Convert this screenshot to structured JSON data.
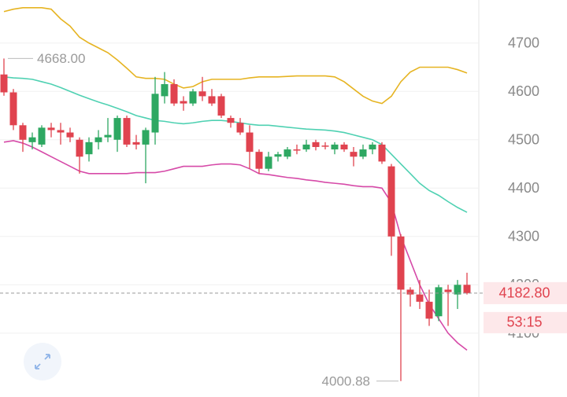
{
  "chart_data": {
    "type": "candlestick",
    "ylim": [
      3968,
      4789
    ],
    "yticks": [
      4100,
      4200,
      4300,
      4400,
      4500,
      4600,
      4700
    ],
    "grid": true,
    "up_color": "#2ea862",
    "down_color": "#e0434f",
    "candles": {
      "open": [
        4635,
        4598,
        4530,
        4495,
        4490,
        4525,
        4520,
        4515,
        4500,
        4470,
        4495,
        4505,
        4500,
        4545,
        4495,
        4490,
        4515,
        4590,
        4615,
        4580,
        4575,
        4600,
        4590,
        4590,
        4545,
        4535,
        4515,
        4475,
        4440,
        4465,
        4465,
        4480,
        4480,
        4495,
        4488,
        4480,
        4490,
        4475,
        4465,
        4480,
        4490,
        4445,
        4300,
        4190,
        4180,
        4165,
        4135,
        4190,
        4180,
        4200
      ],
      "high": [
        4668,
        4605,
        4535,
        4515,
        4530,
        4535,
        4535,
        4525,
        4505,
        4505,
        4520,
        4545,
        4550,
        4550,
        4510,
        4525,
        4630,
        4640,
        4625,
        4590,
        4605,
        4630,
        4605,
        4595,
        4550,
        4545,
        4530,
        4480,
        4475,
        4475,
        4485,
        4490,
        4500,
        4500,
        4495,
        4495,
        4495,
        4485,
        4490,
        4495,
        4495,
        4450,
        4305,
        4195,
        4210,
        4190,
        4200,
        4200,
        4210,
        4225
      ],
      "low": [
        4591,
        4520,
        4475,
        4480,
        4485,
        4505,
        4490,
        4495,
        4430,
        4455,
        4480,
        4495,
        4475,
        4485,
        4480,
        4410,
        4490,
        4575,
        4570,
        4560,
        4570,
        4580,
        4570,
        4545,
        4525,
        4510,
        4440,
        4430,
        4435,
        4455,
        4460,
        4470,
        4475,
        4478,
        4480,
        4470,
        4475,
        4445,
        4460,
        4470,
        4450,
        4260,
        4000.88,
        4155,
        4150,
        4115,
        4125,
        4115,
        4150,
        4180
      ],
      "close": [
        4598,
        4530,
        4500,
        4505,
        4525,
        4520,
        4515,
        4505,
        4465,
        4495,
        4505,
        4510,
        4545,
        4490,
        4490,
        4520,
        4595,
        4615,
        4575,
        4575,
        4600,
        4590,
        4575,
        4550,
        4535,
        4515,
        4475,
        4440,
        4465,
        4470,
        4480,
        4478,
        4490,
        4485,
        4486,
        4490,
        4480,
        4465,
        4480,
        4490,
        4455,
        4300,
        4190,
        4180,
        4165,
        4130,
        4195,
        4185,
        4200,
        4182.8
      ]
    },
    "bands": [
      {
        "color": "#e6b422",
        "values": [
          4765,
          4770,
          4773,
          4773,
          4773,
          4770,
          4750,
          4735,
          4712,
          4700,
          4690,
          4680,
          4665,
          4648,
          4630,
          4627,
          4627,
          4625,
          4615,
          4607,
          4610,
          4620,
          4625,
          4625,
          4625,
          4625,
          4628,
          4630,
          4630,
          4630,
          4631,
          4632,
          4632,
          4632,
          4632,
          4630,
          4620,
          4605,
          4590,
          4580,
          4575,
          4590,
          4620,
          4640,
          4650,
          4650,
          4650,
          4650,
          4645,
          4638
        ]
      },
      {
        "color": "#4fd1b2",
        "values": [
          4630,
          4628,
          4627,
          4625,
          4620,
          4615,
          4608,
          4600,
          4592,
          4585,
          4578,
          4572,
          4565,
          4558,
          4550,
          4545,
          4540,
          4538,
          4535,
          4533,
          4535,
          4538,
          4540,
          4540,
          4538,
          4535,
          4532,
          4530,
          4530,
          4528,
          4526,
          4524,
          4522,
          4521,
          4520,
          4518,
          4515,
          4510,
          4505,
          4500,
          4490,
          4470,
          4450,
          4430,
          4410,
          4395,
          4385,
          4372,
          4360,
          4350
        ]
      },
      {
        "color": "#d64aa8",
        "values": [
          4495,
          4498,
          4493,
          4485,
          4475,
          4465,
          4455,
          4445,
          4435,
          4430,
          4430,
          4430,
          4430,
          4430,
          4432,
          4432,
          4432,
          4435,
          4440,
          4445,
          4445,
          4445,
          4448,
          4450,
          4450,
          4448,
          4440,
          4430,
          4428,
          4425,
          4422,
          4420,
          4417,
          4415,
          4412,
          4410,
          4408,
          4405,
          4403,
          4403,
          4400,
          4370,
          4300,
          4250,
          4200,
          4160,
          4130,
          4100,
          4080,
          4065
        ]
      }
    ],
    "max_label": {
      "value": 4668,
      "label": "4668.00"
    },
    "min_label": {
      "value": 4000.88,
      "label": "4000.88"
    },
    "last_price": {
      "value": 4182.8,
      "label": "4182.80"
    },
    "countdown": "53:15"
  }
}
